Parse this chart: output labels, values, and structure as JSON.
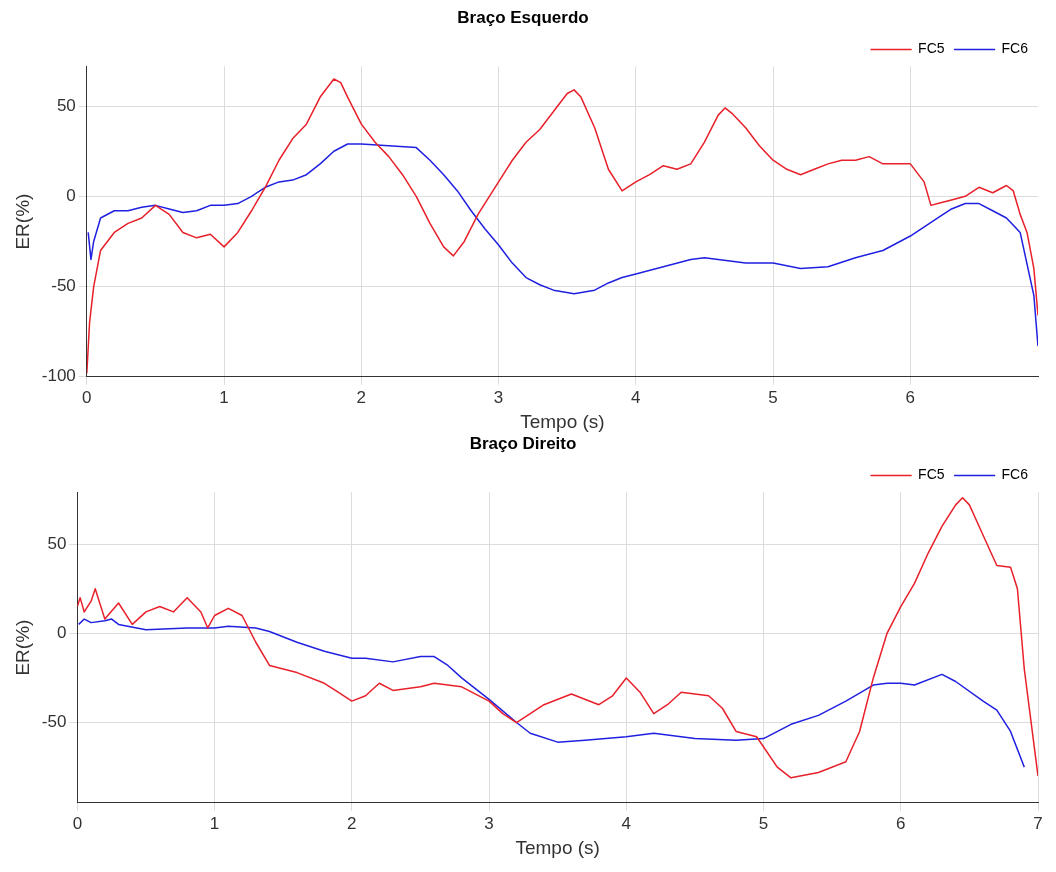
{
  "chart_data": [
    {
      "type": "line",
      "title": "Braço Esquerdo",
      "xlabel": "Tempo (s)",
      "ylabel": "ER(%)",
      "xlim": [
        0,
        6.93
      ],
      "ylim": [
        -100,
        72
      ],
      "xticks": [
        0,
        1,
        2,
        3,
        4,
        5,
        6
      ],
      "yticks": [
        -100,
        -50,
        0,
        50
      ],
      "grid": true,
      "legend": "top right",
      "marker": "none",
      "line_style": "solid",
      "series": [
        {
          "name": "FC5",
          "color": "#e8202a",
          "x": [
            0,
            0.02,
            0.05,
            0.1,
            0.2,
            0.3,
            0.4,
            0.5,
            0.6,
            0.7,
            0.8,
            0.9,
            1.0,
            1.1,
            1.2,
            1.3,
            1.4,
            1.5,
            1.6,
            1.7,
            1.8,
            1.85,
            1.9,
            2.0,
            2.1,
            2.2,
            2.3,
            2.4,
            2.5,
            2.6,
            2.67,
            2.75,
            2.85,
            3.0,
            3.1,
            3.2,
            3.3,
            3.4,
            3.5,
            3.55,
            3.6,
            3.7,
            3.8,
            3.9,
            4.0,
            4.1,
            4.2,
            4.3,
            4.4,
            4.5,
            4.6,
            4.65,
            4.7,
            4.8,
            4.9,
            5.0,
            5.1,
            5.2,
            5.3,
            5.4,
            5.5,
            5.6,
            5.7,
            5.8,
            5.9,
            6.0,
            6.1,
            6.15,
            6.2,
            6.3,
            6.4,
            6.5,
            6.6,
            6.7,
            6.75,
            6.8,
            6.85,
            6.9,
            6.93
          ],
          "values": [
            -98,
            -70,
            -50,
            -30,
            -20,
            -15,
            -12,
            -5,
            -10,
            -20,
            -23,
            -21,
            -28,
            -20,
            -8,
            5,
            20,
            32,
            40,
            55,
            65,
            63,
            55,
            40,
            30,
            22,
            12,
            0,
            -15,
            -28,
            -33,
            -25,
            -10,
            8,
            20,
            30,
            37,
            47,
            57,
            59,
            55,
            38,
            15,
            3,
            8,
            12,
            17,
            15,
            18,
            30,
            45,
            49,
            46,
            38,
            28,
            20,
            15,
            12,
            15,
            18,
            20,
            20,
            22,
            18,
            18,
            18,
            8,
            -5,
            -4,
            -2,
            0,
            5,
            2,
            6,
            3,
            -10,
            -20,
            -40,
            -66
          ]
        },
        {
          "name": "FC6",
          "color": "#2020e0",
          "x": [
            0.01,
            0.03,
            0.05,
            0.1,
            0.2,
            0.3,
            0.4,
            0.5,
            0.6,
            0.7,
            0.8,
            0.9,
            1.0,
            1.1,
            1.2,
            1.3,
            1.4,
            1.5,
            1.6,
            1.7,
            1.8,
            1.9,
            2.0,
            2.2,
            2.4,
            2.5,
            2.6,
            2.7,
            2.8,
            2.9,
            3.0,
            3.1,
            3.2,
            3.3,
            3.4,
            3.55,
            3.7,
            3.8,
            3.9,
            4.0,
            4.2,
            4.4,
            4.5,
            4.6,
            4.8,
            5.0,
            5.2,
            5.4,
            5.6,
            5.8,
            6.0,
            6.2,
            6.3,
            6.4,
            6.5,
            6.6,
            6.7,
            6.8,
            6.9,
            6.93
          ],
          "values": [
            -20,
            -35,
            -25,
            -12,
            -8,
            -8,
            -6,
            -5,
            -7,
            -9,
            -8,
            -5,
            -5,
            -4,
            0,
            5,
            8,
            9,
            12,
            18,
            25,
            29,
            29,
            28,
            27,
            20,
            12,
            3,
            -8,
            -18,
            -27,
            -37,
            -45,
            -49,
            -52,
            -54,
            -52,
            -48,
            -45,
            -43,
            -39,
            -35,
            -34,
            -35,
            -37,
            -37,
            -40,
            -39,
            -34,
            -30,
            -22,
            -12,
            -7,
            -4,
            -4,
            -8,
            -12,
            -20,
            -55,
            -83
          ]
        }
      ]
    },
    {
      "type": "line",
      "title": "Braço Direito",
      "xlabel": "Tempo (s)",
      "ylabel": "ER(%)",
      "xlim": [
        0,
        7
      ],
      "ylim": [
        -95,
        79
      ],
      "xticks": [
        0,
        1,
        2,
        3,
        4,
        5,
        6,
        7
      ],
      "yticks": [
        -50,
        0,
        50
      ],
      "grid": true,
      "legend": "top right",
      "marker": "none",
      "line_style": "solid",
      "series": [
        {
          "name": "FC5",
          "color": "#e8202a",
          "x": [
            0,
            0.02,
            0.05,
            0.1,
            0.13,
            0.2,
            0.3,
            0.4,
            0.5,
            0.6,
            0.7,
            0.8,
            0.9,
            0.95,
            1.0,
            1.1,
            1.2,
            1.3,
            1.4,
            1.5,
            1.6,
            1.8,
            1.9,
            2.0,
            2.1,
            2.2,
            2.3,
            2.5,
            2.6,
            2.8,
            3.0,
            3.1,
            3.2,
            3.3,
            3.4,
            3.6,
            3.8,
            3.9,
            4.0,
            4.1,
            4.2,
            4.3,
            4.4,
            4.6,
            4.7,
            4.8,
            4.95,
            5.1,
            5.2,
            5.4,
            5.6,
            5.7,
            5.8,
            5.9,
            6.0,
            6.1,
            6.2,
            6.3,
            6.4,
            6.45,
            6.5,
            6.6,
            6.7,
            6.8,
            6.85,
            6.9,
            7.0
          ],
          "values": [
            15,
            20,
            12,
            18,
            25,
            8,
            17,
            5,
            12,
            15,
            12,
            20,
            12,
            3,
            10,
            14,
            10,
            -5,
            -18,
            -20,
            -22,
            -28,
            -33,
            -38,
            -35,
            -28,
            -32,
            -30,
            -28,
            -30,
            -38,
            -45,
            -50,
            -45,
            -40,
            -34,
            -40,
            -35,
            -25,
            -33,
            -45,
            -40,
            -33,
            -35,
            -42,
            -55,
            -58,
            -75,
            -81,
            -78,
            -72,
            -55,
            -25,
            0,
            15,
            28,
            45,
            60,
            72,
            76,
            72,
            55,
            38,
            37,
            25,
            -20,
            -80
          ]
        },
        {
          "name": "FC6",
          "color": "#2020e0",
          "x": [
            0.01,
            0.05,
            0.1,
            0.2,
            0.25,
            0.3,
            0.5,
            0.8,
            1.0,
            1.1,
            1.3,
            1.4,
            1.6,
            1.8,
            2.0,
            2.1,
            2.3,
            2.5,
            2.6,
            2.7,
            2.8,
            3.0,
            3.2,
            3.3,
            3.5,
            3.7,
            4.0,
            4.2,
            4.3,
            4.5,
            4.8,
            5.0,
            5.2,
            5.4,
            5.6,
            5.8,
            5.9,
            6.0,
            6.1,
            6.3,
            6.4,
            6.6,
            6.7,
            6.8,
            6.9
          ],
          "values": [
            5,
            8,
            6,
            7,
            8,
            5,
            2,
            3,
            3,
            4,
            3,
            1,
            -5,
            -10,
            -14,
            -14,
            -16,
            -13,
            -13,
            -18,
            -25,
            -37,
            -50,
            -56,
            -61,
            -60,
            -58,
            -56,
            -57,
            -59,
            -60,
            -59,
            -51,
            -46,
            -38,
            -29,
            -28,
            -28,
            -29,
            -23,
            -27,
            -38,
            -43,
            -55,
            -75
          ]
        }
      ]
    }
  ]
}
